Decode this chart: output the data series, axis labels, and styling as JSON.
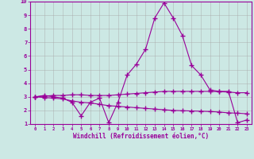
{
  "x": [
    0,
    1,
    2,
    3,
    4,
    5,
    6,
    7,
    8,
    9,
    10,
    11,
    12,
    13,
    14,
    15,
    16,
    17,
    18,
    19,
    20,
    21,
    22,
    23
  ],
  "line1": [
    3.0,
    3.1,
    3.0,
    2.9,
    2.6,
    1.6,
    2.6,
    2.9,
    1.1,
    2.6,
    4.6,
    5.4,
    6.5,
    8.8,
    9.9,
    8.8,
    7.5,
    5.3,
    4.6,
    3.5,
    3.4,
    3.4,
    1.1,
    1.3
  ],
  "line2": [
    3.0,
    3.05,
    3.1,
    3.1,
    3.15,
    3.15,
    3.1,
    3.1,
    3.1,
    3.15,
    3.2,
    3.25,
    3.3,
    3.35,
    3.4,
    3.4,
    3.4,
    3.4,
    3.4,
    3.4,
    3.38,
    3.35,
    3.3,
    3.3
  ],
  "line3": [
    3.0,
    2.95,
    2.9,
    2.85,
    2.7,
    2.6,
    2.55,
    2.45,
    2.35,
    2.3,
    2.25,
    2.2,
    2.15,
    2.1,
    2.05,
    2.0,
    1.98,
    1.96,
    1.94,
    1.92,
    1.88,
    1.82,
    1.8,
    1.75
  ],
  "line_color": "#990099",
  "bg_color": "#cce8e4",
  "grid_color": "#aaaaaa",
  "xlabel": "Windchill (Refroidissement éolien,°C)",
  "ylim": [
    1,
    10
  ],
  "xlim": [
    -0.5,
    23.5
  ],
  "yticks": [
    1,
    2,
    3,
    4,
    5,
    6,
    7,
    8,
    9,
    10
  ],
  "xticks": [
    0,
    1,
    2,
    3,
    4,
    5,
    6,
    7,
    8,
    9,
    10,
    11,
    12,
    13,
    14,
    15,
    16,
    17,
    18,
    19,
    20,
    21,
    22,
    23
  ]
}
